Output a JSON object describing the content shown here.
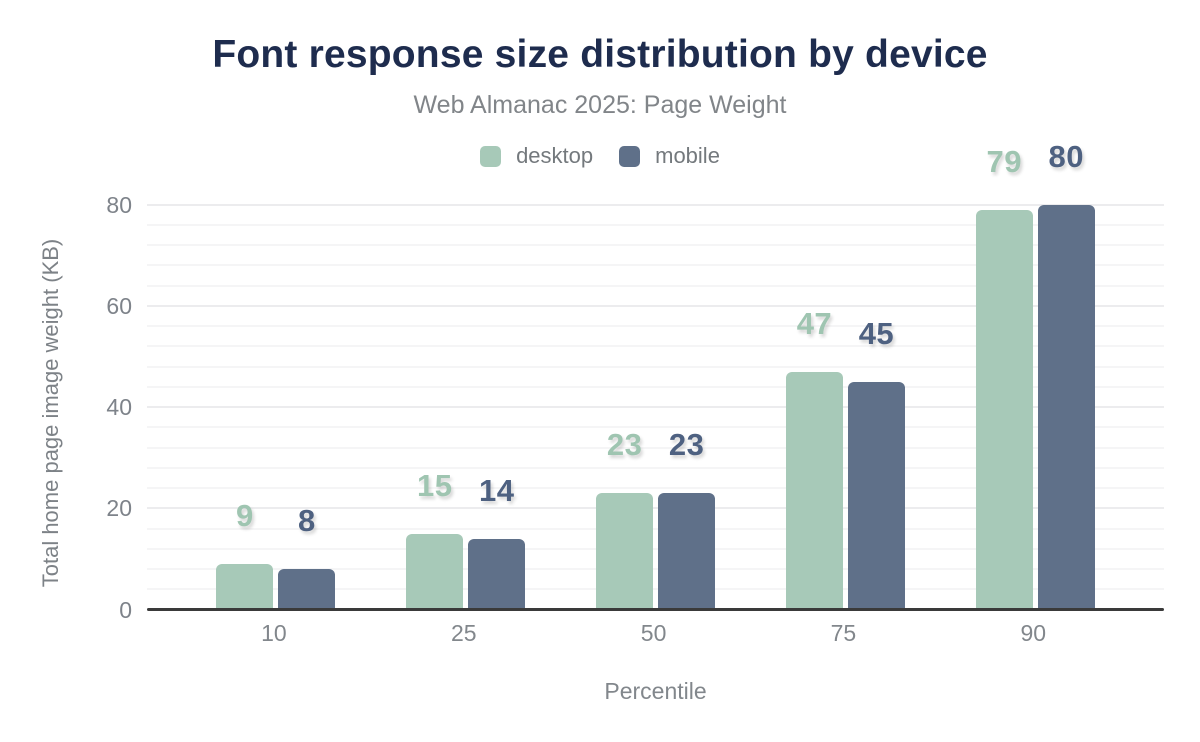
{
  "chart_data": {
    "type": "bar",
    "title": "Font response size distribution by device",
    "subtitle": "Web Almanac 2025: Page Weight",
    "categories": [
      "10",
      "25",
      "50",
      "75",
      "90"
    ],
    "series": [
      {
        "name": "desktop",
        "color": "#a7c9b8",
        "label_color": "#9fc5b1",
        "values": [
          9,
          15,
          23,
          47,
          79
        ]
      },
      {
        "name": "mobile",
        "color": "#5f7089",
        "label_color": "#4e6181",
        "values": [
          8,
          14,
          23,
          45,
          80
        ]
      }
    ],
    "xlabel": "Percentile",
    "ylabel": "Total home page image weight (KB)",
    "yticks": [
      0,
      20,
      40,
      60,
      80
    ],
    "ylim": [
      0,
      84
    ],
    "grid": {
      "horizontal": true,
      "minor_step_kb": 4,
      "major_step_kb": 20
    },
    "legend_position": "top",
    "legend_labels": [
      "desktop",
      "mobile"
    ],
    "colors": {
      "title_text": "#1e2c4e",
      "subtitle_text": "#818589",
      "axis_text": "#7e838a",
      "legend_text": "#74797d",
      "axis_line": "#3a3a3a",
      "gridline_minor": "#f5f5f6",
      "gridline_major": "#ececee",
      "background": "#ffffff"
    }
  }
}
